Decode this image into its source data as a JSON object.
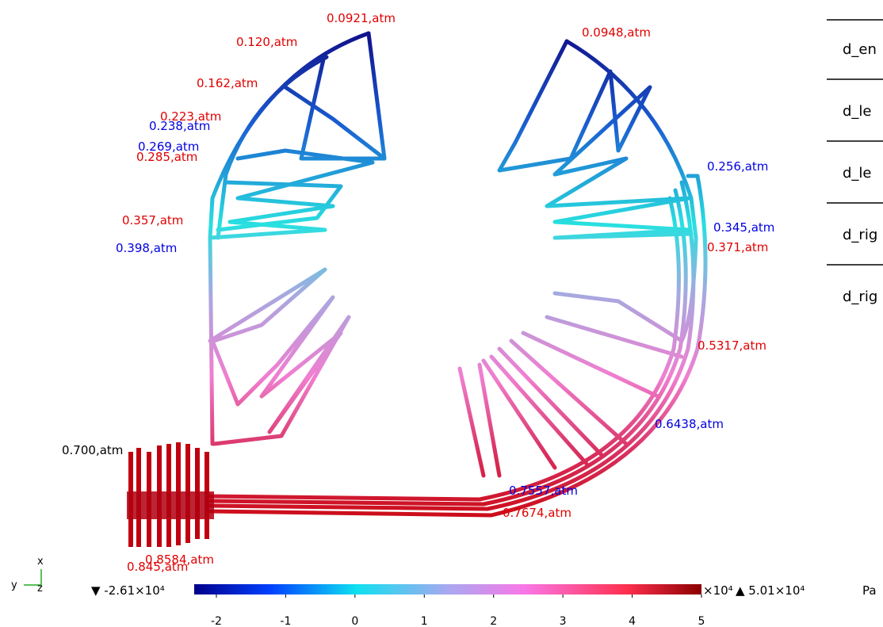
{
  "annotations": [
    {
      "text": "0.0921,atm",
      "color": "#e00000"
    },
    {
      "text": "0.120,atm",
      "color": "#e00000"
    },
    {
      "text": "0.162,atm",
      "color": "#e00000"
    },
    {
      "text": "0.223,atm",
      "color": "#e00000"
    },
    {
      "text": "0.238,atm",
      "color": "#0000e0"
    },
    {
      "text": "0.269,atm",
      "color": "#0000e0"
    },
    {
      "text": "0.285,atm",
      "color": "#e00000"
    },
    {
      "text": "0.357,atm",
      "color": "#e00000"
    },
    {
      "text": "0.398,atm",
      "color": "#0000e0"
    },
    {
      "text": "0.700,atm",
      "color": "#000000"
    },
    {
      "text": "0.845,atm",
      "color": "#e00000"
    },
    {
      "text": "0.8584,atm",
      "color": "#e00000"
    },
    {
      "text": "0.0948,atm",
      "color": "#e00000"
    },
    {
      "text": "0.256,atm",
      "color": "#0000e0"
    },
    {
      "text": "0.345,atm",
      "color": "#0000e0"
    },
    {
      "text": "0.371,atm",
      "color": "#e00000"
    },
    {
      "text": "0.5317,atm",
      "color": "#e00000"
    },
    {
      "text": "0.6438,atm",
      "color": "#0000e0"
    },
    {
      "text": "0.7557,atm",
      "color": "#0000e0"
    },
    {
      "text": "0.7674,atm",
      "color": "#e00000"
    }
  ],
  "table": {
    "rows": [
      "d_en",
      "d_le",
      "d_le",
      "d_rig",
      "d_rig"
    ]
  },
  "triad": {
    "x": "x",
    "y": "y",
    "z": "z"
  },
  "colorbar": {
    "min_label": "▼ -2.61×10⁴",
    "max_label": "▲ 5.01×10⁴",
    "multiplier": "×10⁴",
    "unit": "Pa",
    "range": [
      -2.32,
      5
    ],
    "ticks": [
      -2,
      -1,
      0,
      1,
      2,
      3,
      4,
      5
    ]
  }
}
